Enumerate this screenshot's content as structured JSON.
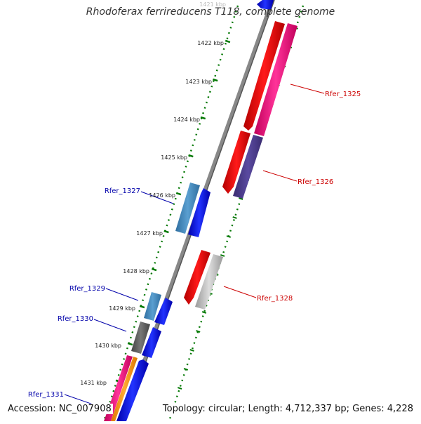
{
  "title": "Rhodoferax ferrireducens T118, complete genome",
  "footer": {
    "accession": "Accession: NC_007908",
    "summary": "Topology: circular; Length: 4,712,337 bp; Genes: 4,228"
  },
  "ruler": {
    "top_partial_label": "1421 kbp",
    "labels": [
      "1422 kbp",
      "1423 kbp",
      "1424 kbp",
      "1425 kbp",
      "1426 kbp",
      "1427 kbp",
      "1428 kbp",
      "1429 kbp",
      "1430 kbp",
      "1431 kbp"
    ]
  },
  "gene_labels": {
    "forward": [
      "Rfer_1325",
      "Rfer_1326",
      "Rfer_1328"
    ],
    "reverse": [
      "Rfer_1327",
      "Rfer_1329",
      "Rfer_1330",
      "Rfer_1331"
    ]
  },
  "colors": {
    "forward_label": "#cc0000",
    "reverse_label": "#0000aa",
    "ruler_tick": "#007700",
    "backbone": "#888888"
  }
}
